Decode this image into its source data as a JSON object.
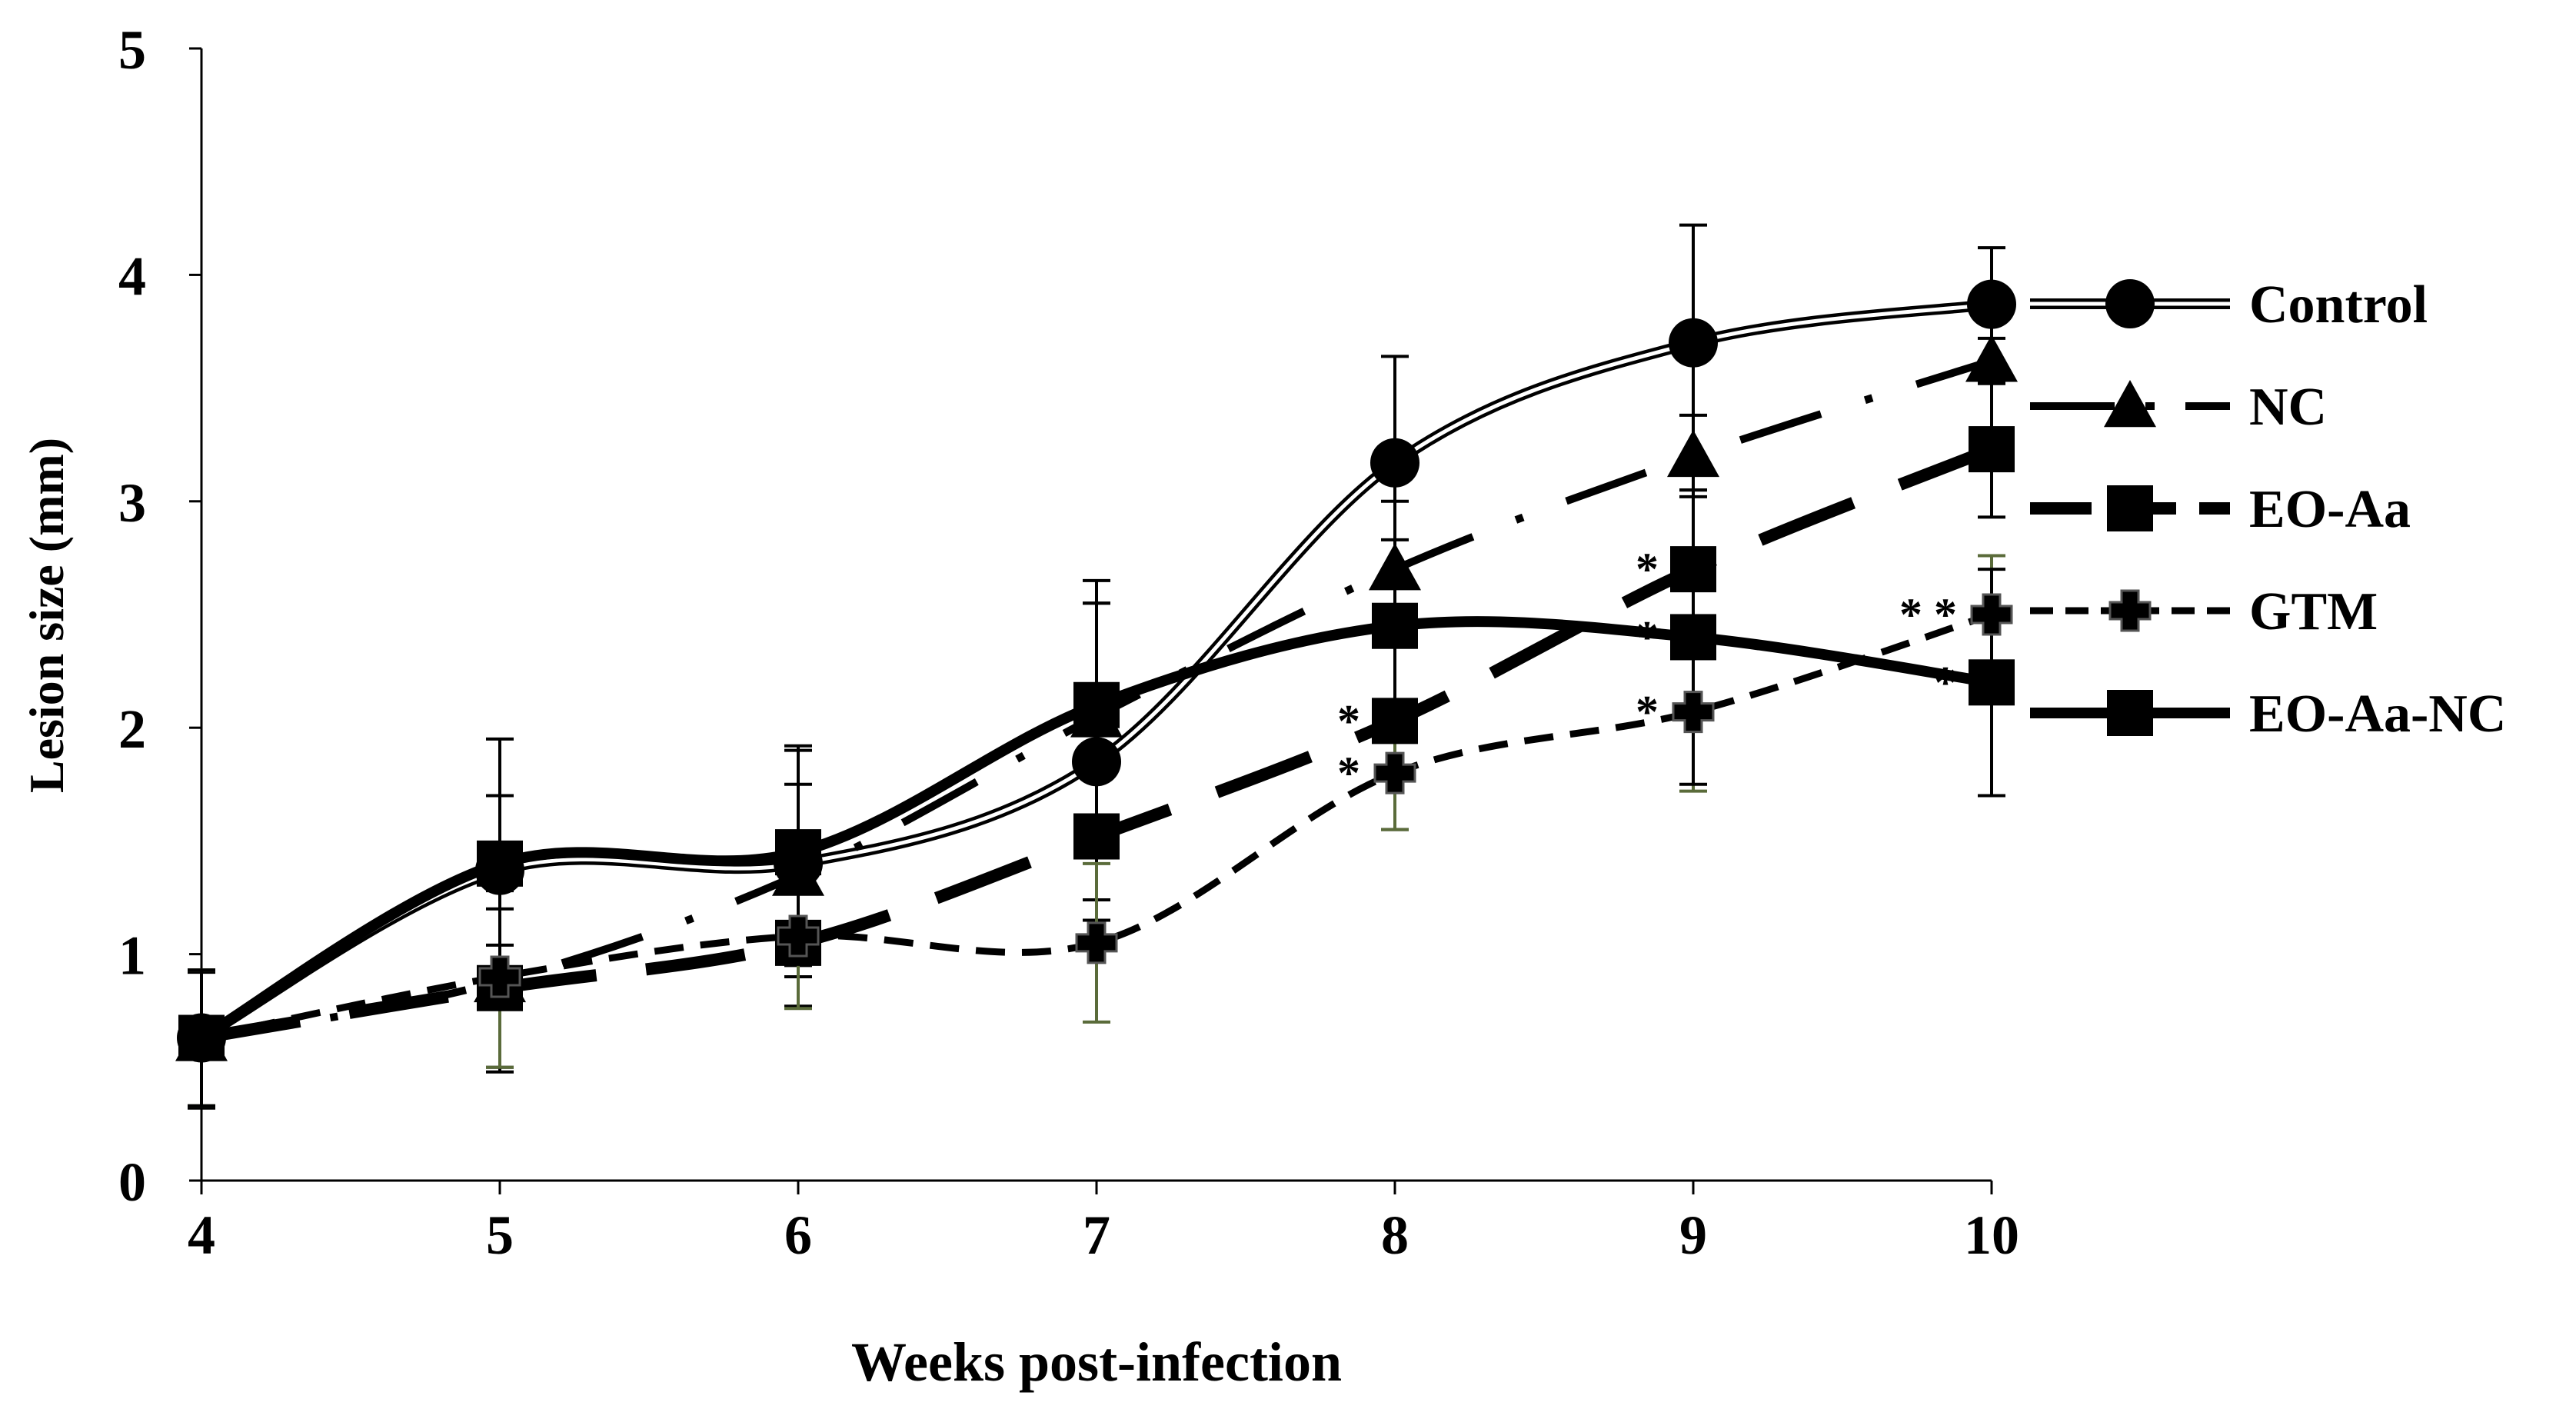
{
  "chart_data": {
    "type": "line",
    "title": "",
    "xlabel": "Weeks post-infection",
    "ylabel": "Lesion size (mm)",
    "xlim": [
      4,
      10
    ],
    "ylim": [
      0,
      5
    ],
    "x": [
      4,
      5,
      6,
      7,
      8,
      9,
      10
    ],
    "xticks": [
      "4",
      "5",
      "6",
      "7",
      "8",
      "9",
      "10"
    ],
    "yticks": [
      "0",
      "1",
      "2",
      "3",
      "4",
      "5"
    ],
    "grid": false,
    "legend_position": "right",
    "series": [
      {
        "name": "Control",
        "marker": "circle",
        "style": "double",
        "values": [
          0.63,
          1.37,
          1.4,
          1.85,
          3.17,
          3.7,
          3.87
        ],
        "error": [
          0.3,
          0.33,
          0.5,
          0.7,
          0.47,
          0.52,
          0.25
        ]
      },
      {
        "name": "NC",
        "marker": "triangle",
        "style": "longdashdot",
        "values": [
          0.62,
          0.88,
          1.35,
          2.05,
          2.7,
          3.2,
          3.62
        ],
        "error": [
          0.3,
          0.4,
          0.4,
          0.5,
          0.3,
          0.18,
          0.1
        ]
      },
      {
        "name": "EO-Aa",
        "marker": "square",
        "style": "longdash",
        "values": [
          0.63,
          0.85,
          1.05,
          1.52,
          2.03,
          2.7,
          3.23
        ],
        "error": [
          0.3,
          0.35,
          0.28,
          0.28,
          0.48,
          0.35,
          0.3
        ]
      },
      {
        "name": "GTM",
        "marker": "cross",
        "style": "dash",
        "values": [
          0.63,
          0.9,
          1.08,
          1.05,
          1.8,
          2.07,
          2.5
        ],
        "error": [
          0.3,
          0.4,
          0.32,
          0.35,
          0.25,
          0.35,
          0.26
        ]
      },
      {
        "name": "EO-Aa-NC",
        "marker": "square",
        "style": "solid",
        "values": [
          0.63,
          1.4,
          1.45,
          2.1,
          2.45,
          2.4,
          2.2
        ],
        "error": [
          0.3,
          0.55,
          0.47,
          0.55,
          0.38,
          0.65,
          0.5
        ]
      }
    ],
    "annotations": [
      {
        "text": "*",
        "x": 8,
        "series": "EO-Aa"
      },
      {
        "text": "*",
        "x": 8,
        "series": "GTM"
      },
      {
        "text": "*",
        "x": 9,
        "series": "EO-Aa"
      },
      {
        "text": "*",
        "x": 9,
        "series": "EO-Aa-NC"
      },
      {
        "text": "*",
        "x": 9,
        "series": "GTM"
      },
      {
        "text": "* *",
        "x": 10,
        "series": "GTM"
      },
      {
        "text": "*",
        "x": 10,
        "series": "EO-Aa-NC"
      }
    ]
  }
}
